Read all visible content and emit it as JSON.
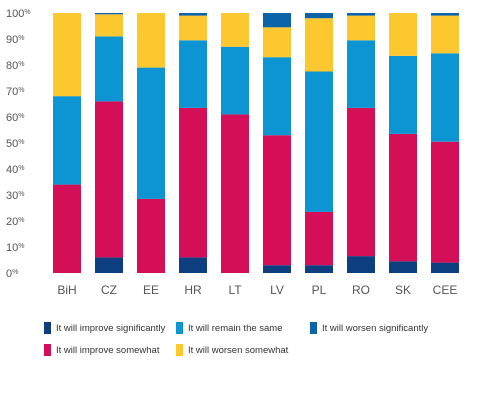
{
  "chart_data": {
    "type": "bar",
    "stacked": true,
    "title": "",
    "xlabel": "",
    "ylabel": "",
    "ylim": [
      0,
      100
    ],
    "y_ticks": [
      "0%",
      "10%",
      "20%",
      "30%",
      "40%",
      "50%",
      "60%",
      "70%",
      "80%",
      "90%",
      "100%"
    ],
    "categories": [
      "BiH",
      "CZ",
      "EE",
      "HR",
      "LT",
      "LV",
      "PL",
      "RO",
      "SK",
      "CEE"
    ],
    "series": [
      {
        "name": "It will improve significantly",
        "color": "#0d3f80",
        "values": [
          0,
          6,
          0,
          6,
          0,
          3,
          3,
          6.5,
          4.5,
          4
        ]
      },
      {
        "name": "It will improve somewhat",
        "color": "#d40f57",
        "values": [
          34,
          60,
          28.5,
          57.5,
          61,
          50,
          20.5,
          57,
          49,
          46.5
        ]
      },
      {
        "name": "It will remain the same",
        "color": "#0d95d3",
        "values": [
          34,
          25,
          50.5,
          26,
          26,
          30,
          54,
          26,
          30,
          34
        ]
      },
      {
        "name": "It will worsen somewhat",
        "color": "#fdc82f",
        "values": [
          32,
          8.5,
          21,
          9.5,
          13,
          11.5,
          20.5,
          9.5,
          16.5,
          14.5
        ]
      },
      {
        "name": "It will worsen significantly",
        "color": "#0b63a9",
        "values": [
          0,
          0.5,
          0,
          1,
          0,
          5.5,
          2,
          1,
          0,
          1
        ]
      }
    ],
    "legend_order": [
      0,
      2,
      4,
      1,
      3
    ],
    "grid": false,
    "legend_position": "bottom"
  }
}
